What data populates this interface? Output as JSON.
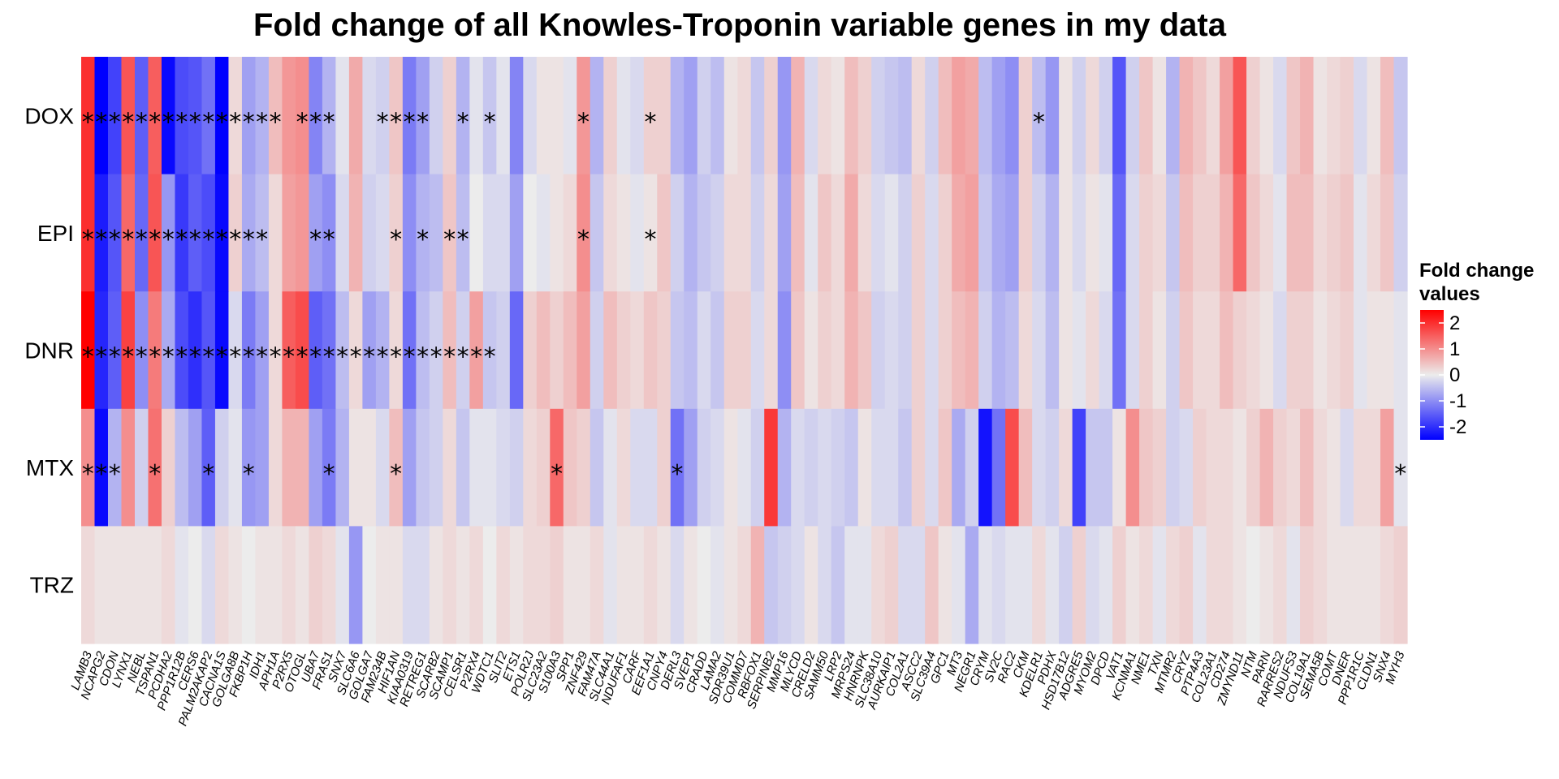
{
  "chart_data": {
    "type": "heatmap",
    "title": "Fold change of all Knowles-Troponin variable genes in my data",
    "rows": [
      "DOX",
      "EPI",
      "DNR",
      "MTX",
      "TRZ"
    ],
    "columns": [
      "LAMB3",
      "NCAPG2",
      "CDON",
      "LYNX1",
      "NEBL",
      "TSPAN1",
      "PCDHA2",
      "PPP1R12B",
      "CERS6",
      "PALM2AKAP2",
      "CACNA1S",
      "GOLGA8B",
      "FKBP1H",
      "IDH1",
      "APH1A",
      "P2RX5",
      "OTOGL",
      "UBA7",
      "FRAS1",
      "SNX7",
      "SLC6A6",
      "GOLGA7",
      "FAM234B",
      "HIF1AN",
      "KIAA0319",
      "RETREG1",
      "SCARB2",
      "SCAMP1",
      "CELSR1",
      "P2RX4",
      "WDTC1",
      "SLIT2",
      "ETS1",
      "POLR2J",
      "SLC23A2",
      "S100A3",
      "SPP1",
      "ZNF429",
      "FAM47A",
      "SLC44A1",
      "NDUFAF1",
      "CARF",
      "EEF1A1",
      "CNPY4",
      "DERL3",
      "SVEP1",
      "CRADD",
      "LAMA2",
      "SDR39U1",
      "COMMD7",
      "RBFOX1",
      "SERPINB2",
      "MMP16",
      "MLYCD",
      "CRELD2",
      "SAMM50",
      "LRP2",
      "MRPS24",
      "HNRNPK",
      "SLC38A10",
      "AURKAIP1",
      "COL2A1",
      "ASCC2",
      "SLC39A4",
      "GPC1",
      "MT3",
      "NEGR1",
      "CRYM",
      "SV2C",
      "RAC2",
      "CKM",
      "KDELR1",
      "PDHX",
      "HSD17B12",
      "ADGRE5",
      "MYOM2",
      "DPCD",
      "VAT1",
      "KCNMA1",
      "NME1",
      "TXN",
      "MTMR2",
      "CRYZ",
      "PTP4A3",
      "COL23A1",
      "CD274",
      "ZMYND11",
      "NTM",
      "PARN",
      "RARRES2",
      "NDUFS3",
      "COL19A1",
      "SEMA5B",
      "COMT",
      "DNER",
      "PPP1R1C",
      "CLDN1",
      "SNX4",
      "MYH3"
    ],
    "values": [
      [
        2.0,
        -2.5,
        -1.8,
        1.6,
        -1.5,
        1.5,
        -2.4,
        -1.7,
        -1.6,
        -1.3,
        -2.5,
        0.2,
        -0.8,
        -0.6,
        0.5,
        0.9,
        1.0,
        -1.1,
        -0.6,
        -0.1,
        0.7,
        -0.2,
        -0.3,
        0.4,
        -1.2,
        -0.8,
        -0.3,
        0.3,
        -0.6,
        -0.1,
        -0.4,
        -0.1,
        -1.1,
        -0.2,
        0.1,
        0.1,
        -0.1,
        0.9,
        -0.6,
        0.3,
        -0.1,
        -0.2,
        0.3,
        0.3,
        -0.6,
        -0.8,
        -0.3,
        -0.5,
        0.1,
        0.2,
        -0.4,
        0.3,
        -0.9,
        0.6,
        -0.2,
        0.2,
        0.1,
        0.5,
        0.3,
        -0.3,
        -0.4,
        -0.5,
        0.2,
        -0.3,
        0.5,
        0.8,
        0.7,
        -0.5,
        -0.8,
        -1.0,
        0.3,
        -0.5,
        -0.9,
        0.1,
        -0.3,
        0.2,
        -0.3,
        -1.6,
        -0.3,
        0.4,
        0.1,
        -0.6,
        0.6,
        0.4,
        0.2,
        0.8,
        1.6,
        0.3,
        0.1,
        -0.2,
        0.4,
        0.6,
        0.1,
        0.2,
        0.3,
        -0.2,
        0.1,
        0.5,
        -0.4
      ],
      [
        2.0,
        -2.2,
        -1.6,
        1.4,
        -1.4,
        1.6,
        -0.9,
        -1.9,
        -1.5,
        -1.7,
        -2.4,
        0.3,
        -0.7,
        -0.5,
        0.2,
        0.8,
        0.9,
        -0.8,
        -1.0,
        -0.2,
        0.6,
        -0.3,
        -0.2,
        0.3,
        -1.0,
        -0.6,
        -0.5,
        0.4,
        -0.5,
        0.0,
        -0.2,
        -0.2,
        -0.8,
        0.0,
        -0.1,
        0.1,
        0.2,
        1.0,
        -0.4,
        0.2,
        0.1,
        -0.1,
        0.1,
        0.4,
        -0.3,
        -0.6,
        -0.4,
        -0.3,
        0.2,
        0.2,
        -0.3,
        0.2,
        -0.8,
        0.5,
        -0.1,
        0.4,
        0.2,
        0.7,
        0.2,
        -0.2,
        -0.1,
        -0.3,
        0.3,
        -0.2,
        0.3,
        0.7,
        0.8,
        -0.4,
        -0.7,
        -0.8,
        0.3,
        -0.3,
        -0.6,
        0.1,
        -0.2,
        0.1,
        -0.1,
        -1.4,
        -0.2,
        0.3,
        0.2,
        -0.4,
        0.5,
        0.3,
        0.3,
        0.6,
        1.4,
        0.4,
        0.2,
        -0.1,
        0.5,
        0.5,
        0.2,
        0.3,
        0.4,
        -0.1,
        0.2,
        0.4,
        -0.3
      ],
      [
        2.5,
        -2.1,
        -1.5,
        1.8,
        -1.0,
        1.2,
        -0.7,
        -1.7,
        -2.0,
        -1.6,
        -2.4,
        -0.2,
        -1.2,
        -0.8,
        0.2,
        1.5,
        1.7,
        -1.5,
        -1.3,
        -0.5,
        0.2,
        -0.8,
        -0.6,
        0.2,
        -1.3,
        -0.5,
        -0.3,
        0.5,
        -0.3,
        0.8,
        -0.4,
        -0.3,
        -1.4,
        0.3,
        0.5,
        0.3,
        0.5,
        0.8,
        -0.3,
        0.5,
        0.3,
        0.2,
        0.4,
        0.3,
        -0.4,
        -0.5,
        -0.2,
        -0.4,
        0.3,
        0.3,
        -0.2,
        0.2,
        -1.0,
        0.4,
        0.1,
        0.3,
        0.2,
        0.6,
        0.4,
        -0.3,
        -0.2,
        -0.3,
        0.3,
        -0.2,
        0.3,
        0.5,
        0.6,
        -0.3,
        -0.6,
        -0.5,
        0.2,
        -0.2,
        -0.5,
        0.1,
        -0.1,
        0.2,
        -0.2,
        -1.3,
        -0.2,
        0.3,
        0.1,
        -0.3,
        0.4,
        0.2,
        0.2,
        0.5,
        0.3,
        0.2,
        0.1,
        -0.2,
        0.3,
        0.3,
        0.1,
        0.2,
        0.3,
        -0.1,
        0.1,
        0.1,
        -0.1
      ],
      [
        1.0,
        -2.4,
        -0.6,
        1.0,
        -0.3,
        1.3,
        0.3,
        -0.5,
        -0.8,
        -1.5,
        -0.3,
        -0.1,
        -0.9,
        -0.8,
        0.2,
        0.6,
        0.6,
        -0.8,
        -1.2,
        -0.6,
        0.1,
        0.1,
        -0.2,
        0.5,
        -0.8,
        -0.4,
        -0.3,
        0.2,
        -0.4,
        -0.1,
        -0.1,
        -0.2,
        -0.3,
        0.2,
        0.3,
        1.4,
        0.4,
        0.3,
        -0.4,
        -0.1,
        0.2,
        -0.2,
        -0.2,
        0.3,
        -1.3,
        -0.8,
        -0.3,
        -0.2,
        0.1,
        -0.1,
        -0.3,
        1.9,
        -0.6,
        -0.2,
        -0.3,
        -0.2,
        -0.3,
        -0.4,
        0.1,
        -0.2,
        -0.2,
        -0.4,
        0.3,
        -0.2,
        0.4,
        -0.7,
        -0.3,
        -2.3,
        -1.3,
        1.7,
        0.5,
        -0.2,
        -0.3,
        0.2,
        -1.8,
        -0.4,
        -0.4,
        0.1,
        1.0,
        0.4,
        0.3,
        -0.3,
        -0.2,
        0.3,
        0.2,
        0.2,
        0.1,
        0.3,
        0.6,
        0.3,
        0.2,
        0.5,
        0.2,
        0.1,
        -0.2,
        0.2,
        0.2,
        0.8,
        -0.1
      ],
      [
        0.2,
        0.1,
        0.1,
        0.1,
        0.1,
        0.1,
        0.2,
        -0.1,
        0.0,
        -0.2,
        0.2,
        0.1,
        0.0,
        0.1,
        0.1,
        0.2,
        0.1,
        0.3,
        0.2,
        -0.1,
        -0.9,
        0.0,
        0.1,
        0.1,
        -0.2,
        -0.2,
        0.1,
        0.2,
        0.1,
        0.2,
        0.0,
        0.2,
        0.1,
        0.2,
        0.2,
        0.3,
        0.1,
        0.1,
        0.2,
        -0.1,
        0.1,
        0.1,
        0.2,
        0.1,
        -0.2,
        0.1,
        0.0,
        -0.1,
        0.1,
        0.2,
        0.6,
        -0.4,
        -0.3,
        -0.2,
        0.1,
        -0.2,
        -0.4,
        -0.1,
        -0.1,
        0.2,
        0.3,
        -0.2,
        -0.2,
        0.4,
        0.1,
        -0.1,
        -0.7,
        -0.1,
        -0.2,
        -0.1,
        -0.1,
        0.2,
        -0.1,
        -0.3,
        0.3,
        -0.2,
        -0.1,
        0.3,
        0.1,
        0.2,
        -0.1,
        0.2,
        0.3,
        -0.1,
        0.2,
        0.2,
        0.1,
        0.0,
        0.1,
        0.2,
        -0.1,
        0.3,
        0.2,
        0.1,
        0.1,
        0.1,
        0.1,
        0.2,
        0.3
      ]
    ],
    "significance": [
      [
        0,
        1,
        2,
        3,
        4,
        5,
        6,
        7,
        8,
        9,
        10,
        11,
        12,
        13,
        14,
        16,
        17,
        18,
        22,
        23,
        24,
        25,
        28,
        30,
        37,
        42,
        71
      ],
      [
        0,
        1,
        2,
        3,
        4,
        5,
        6,
        7,
        8,
        9,
        10,
        11,
        12,
        13,
        17,
        18,
        23,
        25,
        27,
        28,
        37,
        42
      ],
      [
        0,
        1,
        2,
        3,
        4,
        5,
        6,
        7,
        8,
        9,
        10,
        11,
        12,
        13,
        14,
        15,
        16,
        17,
        18,
        19,
        20,
        21,
        22,
        23,
        24,
        25,
        26,
        27,
        28,
        29,
        30
      ],
      [
        0,
        1,
        2,
        5,
        9,
        12,
        18,
        23,
        35,
        44,
        98
      ],
      []
    ],
    "significance_marker": "*",
    "legend": {
      "title_line1": "Fold change",
      "title_line2": "values",
      "ticks": [
        2,
        1,
        0,
        -1,
        -2
      ],
      "tick_labels": [
        "2",
        "1",
        "0",
        "-1",
        "-2"
      ],
      "range": [
        -2.5,
        2.5
      ],
      "colors": {
        "high": "#ff0000",
        "mid": "#ececec",
        "low": "#0000ff"
      }
    },
    "grid": false,
    "legend_position": "right"
  }
}
